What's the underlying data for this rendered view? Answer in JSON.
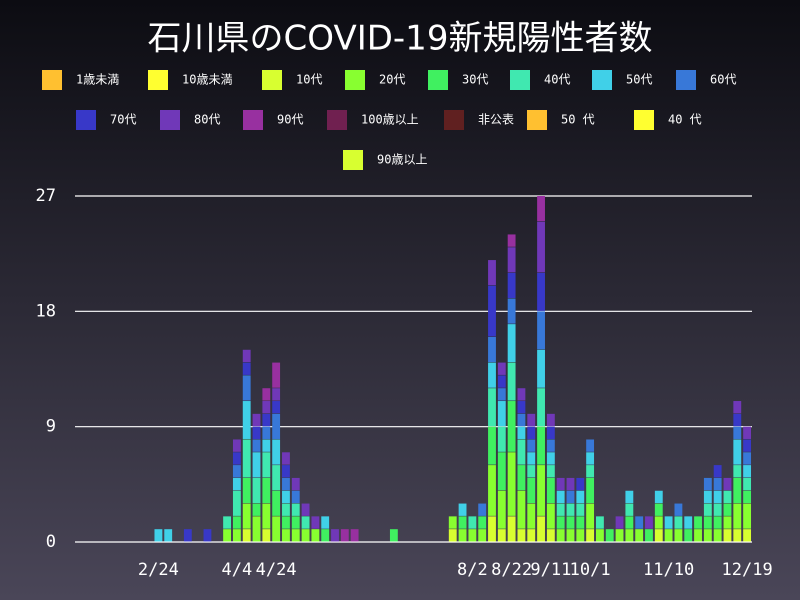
{
  "chart_data": {
    "type": "bar",
    "stacked": true,
    "title": "石川県のCOVID-19新規陽性者数",
    "categories": [
      null,
      null,
      null,
      null,
      null,
      null,
      null,
      null,
      "2/24",
      null,
      null,
      null,
      null,
      null,
      null,
      null,
      "4/4",
      null,
      null,
      null,
      "4/24",
      null,
      null,
      null,
      null,
      null,
      null,
      null,
      null,
      null,
      null,
      null,
      null,
      null,
      null,
      null,
      null,
      null,
      null,
      null,
      "8/2",
      null,
      null,
      null,
      "8/22",
      null,
      null,
      null,
      "9/11",
      null,
      null,
      null,
      "10/1",
      null,
      null,
      null,
      null,
      null,
      null,
      null,
      "11/10",
      null,
      null,
      null,
      null,
      null,
      null,
      null,
      "12/19"
    ],
    "ylim": [
      0,
      27
    ],
    "yticks": [
      0,
      9,
      18,
      27
    ],
    "grid": true,
    "series": [
      {
        "name": "1歳未満",
        "color": "#ffc030",
        "values": [
          0,
          0,
          0,
          0,
          0,
          0,
          0,
          0,
          0,
          0,
          0,
          0,
          0,
          0,
          0,
          0,
          0,
          0,
          0,
          0,
          0,
          0,
          0,
          0,
          0,
          0,
          0,
          0,
          0,
          0,
          0,
          0,
          0,
          0,
          0,
          0,
          0,
          0,
          0,
          0,
          0,
          0,
          0,
          0,
          0,
          0,
          0,
          0,
          0,
          0,
          0,
          0,
          0,
          0,
          0,
          0,
          0,
          0,
          0,
          0,
          0,
          0,
          0,
          0,
          0,
          0,
          0,
          0,
          0
        ]
      },
      {
        "name": "10歳未満",
        "color": "#ffff30",
        "values": [
          0,
          0,
          0,
          0,
          0,
          0,
          0,
          0,
          0,
          0,
          0,
          0,
          0,
          0,
          0,
          0,
          0,
          0,
          0,
          0,
          0,
          0,
          0,
          0,
          0,
          0,
          0,
          0,
          0,
          0,
          0,
          0,
          0,
          0,
          0,
          0,
          0,
          0,
          0,
          0,
          0,
          0,
          0,
          0,
          0,
          0,
          0,
          0,
          0,
          0,
          0,
          0,
          0,
          0,
          0,
          0,
          0,
          0,
          0,
          0,
          0,
          0,
          0,
          0,
          0,
          0,
          0,
          0,
          0
        ]
      },
      {
        "name": "10代",
        "color": "#d8ff30",
        "values": [
          0,
          0,
          0,
          0,
          0,
          0,
          0,
          0,
          0,
          0,
          0,
          0,
          0,
          0,
          0,
          0,
          0,
          1,
          0,
          1,
          0,
          0,
          0,
          0,
          0,
          0,
          0,
          0,
          0,
          0,
          0,
          0,
          0,
          0,
          0,
          0,
          0,
          0,
          1,
          0,
          0,
          0,
          2,
          1,
          2,
          1,
          1,
          2,
          1,
          0,
          0,
          0,
          1,
          0,
          0,
          0,
          0,
          0,
          0,
          1,
          0,
          0,
          0,
          0,
          0,
          0,
          1,
          1,
          1
        ]
      },
      {
        "name": "20代",
        "color": "#88ff30",
        "values": [
          0,
          0,
          0,
          0,
          0,
          0,
          0,
          0,
          0,
          0,
          0,
          0,
          0,
          0,
          0,
          1,
          1,
          2,
          2,
          2,
          2,
          1,
          1,
          1,
          1,
          0,
          0,
          0,
          0,
          0,
          0,
          0,
          0,
          0,
          0,
          0,
          0,
          0,
          1,
          1,
          1,
          1,
          4,
          3,
          5,
          3,
          2,
          4,
          2,
          1,
          1,
          1,
          2,
          1,
          0,
          1,
          1,
          1,
          0,
          1,
          1,
          1,
          0,
          1,
          1,
          1,
          1,
          2,
          2
        ]
      },
      {
        "name": "30代",
        "color": "#40f060",
        "values": [
          0,
          0,
          0,
          0,
          0,
          0,
          0,
          0,
          0,
          0,
          0,
          0,
          0,
          0,
          0,
          0,
          1,
          2,
          1,
          2,
          2,
          1,
          1,
          0,
          0,
          1,
          0,
          0,
          0,
          0,
          0,
          0,
          1,
          0,
          0,
          0,
          0,
          0,
          0,
          1,
          0,
          1,
          3,
          3,
          4,
          2,
          2,
          3,
          2,
          1,
          1,
          1,
          2,
          0,
          1,
          0,
          1,
          0,
          1,
          1,
          0,
          0,
          1,
          1,
          1,
          1,
          1,
          2,
          1
        ]
      },
      {
        "name": "40代",
        "color": "#40e8b0",
        "values": [
          0,
          0,
          0,
          0,
          0,
          0,
          0,
          0,
          0,
          0,
          0,
          0,
          0,
          0,
          0,
          1,
          2,
          3,
          2,
          2,
          2,
          1,
          1,
          1,
          0,
          0,
          0,
          0,
          0,
          0,
          0,
          0,
          0,
          0,
          0,
          0,
          0,
          0,
          0,
          0,
          1,
          0,
          3,
          2,
          3,
          2,
          1,
          3,
          1,
          1,
          1,
          1,
          1,
          1,
          0,
          0,
          1,
          0,
          0,
          0,
          0,
          1,
          0,
          0,
          1,
          1,
          1,
          1,
          1
        ]
      },
      {
        "name": "50代",
        "color": "#40d0e8",
        "values": [
          0,
          0,
          0,
          0,
          0,
          0,
          0,
          0,
          1,
          1,
          0,
          0,
          0,
          0,
          0,
          0,
          1,
          3,
          2,
          1,
          2,
          1,
          0,
          0,
          0,
          1,
          0,
          0,
          0,
          0,
          0,
          0,
          0,
          0,
          0,
          0,
          0,
          0,
          0,
          1,
          0,
          0,
          2,
          2,
          3,
          1,
          1,
          3,
          1,
          1,
          0,
          1,
          1,
          0,
          0,
          0,
          1,
          0,
          0,
          1,
          1,
          0,
          1,
          0,
          1,
          1,
          0,
          2,
          1
        ]
      },
      {
        "name": "60代",
        "color": "#3878d8",
        "values": [
          0,
          0,
          0,
          0,
          0,
          0,
          0,
          0,
          0,
          0,
          0,
          0,
          0,
          0,
          0,
          0,
          1,
          2,
          1,
          1,
          2,
          1,
          1,
          0,
          0,
          0,
          0,
          0,
          0,
          0,
          0,
          0,
          0,
          0,
          0,
          0,
          0,
          0,
          0,
          0,
          0,
          1,
          2,
          1,
          2,
          1,
          1,
          3,
          1,
          0,
          1,
          0,
          1,
          0,
          0,
          0,
          0,
          1,
          0,
          0,
          0,
          1,
          0,
          0,
          1,
          1,
          0,
          1,
          1
        ]
      },
      {
        "name": "70代",
        "color": "#3838c8",
        "values": [
          0,
          0,
          0,
          0,
          0,
          0,
          0,
          0,
          0,
          0,
          0,
          1,
          0,
          1,
          0,
          0,
          1,
          1,
          1,
          1,
          1,
          1,
          0,
          0,
          0,
          0,
          0,
          0,
          0,
          0,
          0,
          0,
          0,
          0,
          0,
          0,
          0,
          0,
          0,
          0,
          0,
          0,
          4,
          1,
          2,
          1,
          1,
          3,
          1,
          0,
          0,
          1,
          0,
          0,
          0,
          0,
          0,
          0,
          0,
          0,
          0,
          0,
          0,
          0,
          0,
          1,
          0,
          1,
          1
        ]
      },
      {
        "name": "80代",
        "color": "#7038b8",
        "values": [
          0,
          0,
          0,
          0,
          0,
          0,
          0,
          0,
          0,
          0,
          0,
          0,
          0,
          0,
          0,
          0,
          1,
          1,
          1,
          1,
          1,
          1,
          1,
          1,
          1,
          0,
          1,
          0,
          0,
          0,
          0,
          0,
          0,
          0,
          0,
          0,
          0,
          0,
          0,
          0,
          0,
          0,
          2,
          1,
          2,
          1,
          1,
          4,
          1,
          1,
          1,
          0,
          0,
          0,
          0,
          1,
          0,
          0,
          1,
          0,
          0,
          0,
          0,
          0,
          0,
          0,
          1,
          1,
          1
        ]
      },
      {
        "name": "90代",
        "color": "#9830a0",
        "values": [
          0,
          0,
          0,
          0,
          0,
          0,
          0,
          0,
          0,
          0,
          0,
          0,
          0,
          0,
          0,
          0,
          0,
          0,
          0,
          1,
          2,
          0,
          0,
          0,
          0,
          0,
          0,
          1,
          1,
          0,
          0,
          0,
          0,
          0,
          0,
          0,
          0,
          0,
          0,
          0,
          0,
          0,
          0,
          0,
          1,
          0,
          0,
          2,
          0,
          0,
          0,
          0,
          0,
          0,
          0,
          0,
          0,
          0,
          0,
          0,
          0,
          0,
          0,
          0,
          0,
          0,
          0,
          0,
          0
        ]
      },
      {
        "name": "100歳以上",
        "color": "#702050",
        "values": [
          0,
          0,
          0,
          0,
          0,
          0,
          0,
          0,
          0,
          0,
          0,
          0,
          0,
          0,
          0,
          0,
          0,
          0,
          0,
          0,
          0,
          0,
          0,
          0,
          0,
          0,
          0,
          0,
          0,
          0,
          0,
          0,
          0,
          0,
          0,
          0,
          0,
          0,
          0,
          0,
          0,
          0,
          0,
          0,
          0,
          0,
          0,
          0,
          0,
          0,
          0,
          0,
          0,
          0,
          0,
          0,
          0,
          0,
          0,
          0,
          0,
          0,
          0,
          0,
          0,
          0,
          0,
          0,
          0
        ]
      },
      {
        "name": "非公表",
        "color": "#602020",
        "values": [
          0,
          0,
          0,
          0,
          0,
          0,
          0,
          0,
          0,
          0,
          0,
          0,
          0,
          0,
          0,
          0,
          0,
          0,
          0,
          0,
          0,
          0,
          0,
          0,
          0,
          0,
          0,
          0,
          0,
          0,
          0,
          0,
          0,
          0,
          0,
          0,
          0,
          0,
          0,
          0,
          0,
          0,
          0,
          0,
          0,
          0,
          0,
          0,
          0,
          0,
          0,
          0,
          0,
          0,
          0,
          0,
          0,
          0,
          0,
          0,
          0,
          0,
          0,
          0,
          0,
          0,
          0,
          0,
          0
        ]
      },
      {
        "name": "50 代",
        "color": "#ffc030",
        "values": [
          0,
          0,
          0,
          0,
          0,
          0,
          0,
          0,
          0,
          0,
          0,
          0,
          0,
          0,
          0,
          0,
          0,
          0,
          0,
          0,
          0,
          0,
          0,
          0,
          0,
          0,
          0,
          0,
          0,
          0,
          0,
          0,
          0,
          0,
          0,
          0,
          0,
          0,
          0,
          0,
          0,
          0,
          0,
          0,
          0,
          0,
          0,
          0,
          0,
          0,
          0,
          0,
          0,
          0,
          0,
          0,
          0,
          0,
          0,
          0,
          0,
          0,
          0,
          0,
          0,
          0,
          0,
          0,
          0
        ]
      },
      {
        "name": "40 代",
        "color": "#ffff30",
        "values": [
          0,
          0,
          0,
          0,
          0,
          0,
          0,
          0,
          0,
          0,
          0,
          0,
          0,
          0,
          0,
          0,
          0,
          0,
          0,
          0,
          0,
          0,
          0,
          0,
          0,
          0,
          0,
          0,
          0,
          0,
          0,
          0,
          0,
          0,
          0,
          0,
          0,
          0,
          0,
          0,
          0,
          0,
          0,
          0,
          0,
          0,
          0,
          0,
          0,
          0,
          0,
          0,
          0,
          0,
          0,
          0,
          0,
          0,
          0,
          0,
          0,
          0,
          0,
          0,
          0,
          0,
          0,
          0,
          0
        ]
      },
      {
        "name": "90歳以上",
        "color": "#d8ff30",
        "values": [
          0,
          0,
          0,
          0,
          0,
          0,
          0,
          0,
          0,
          0,
          0,
          0,
          0,
          0,
          0,
          0,
          0,
          0,
          0,
          0,
          0,
          0,
          0,
          0,
          0,
          0,
          0,
          0,
          0,
          0,
          0,
          0,
          0,
          0,
          0,
          0,
          0,
          0,
          0,
          0,
          0,
          0,
          0,
          0,
          0,
          0,
          0,
          0,
          0,
          0,
          0,
          0,
          0,
          0,
          0,
          0,
          0,
          0,
          0,
          0,
          0,
          0,
          0,
          0,
          0,
          0,
          0,
          0,
          0
        ]
      }
    ]
  }
}
